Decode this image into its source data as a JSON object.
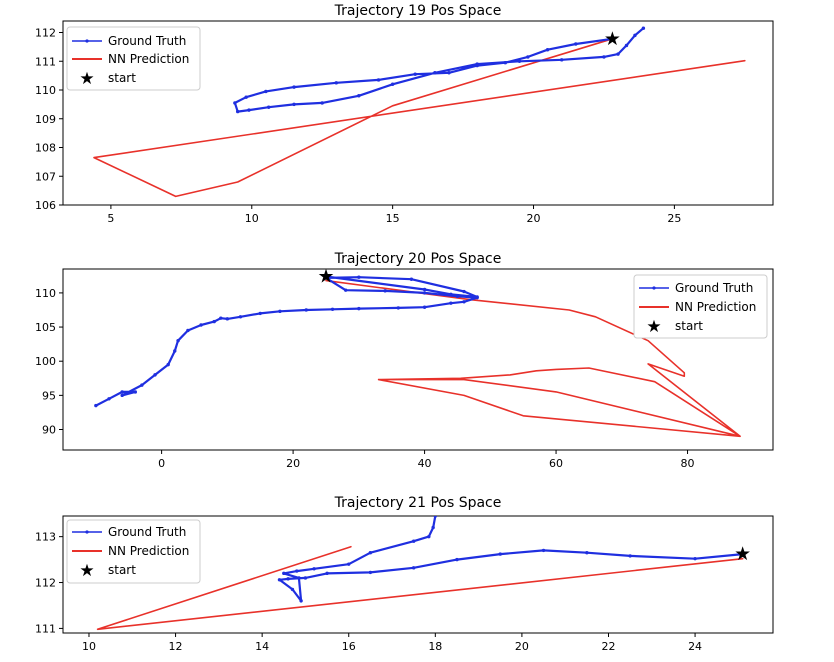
{
  "chart_data": [
    {
      "type": "line",
      "title": "Trajectory 19 Pos Space",
      "xlabel": "",
      "ylabel": "",
      "xlim": [
        3.3,
        28.5
      ],
      "ylim": [
        106,
        112.4
      ],
      "xticks": [
        5,
        10,
        15,
        20,
        25
      ],
      "yticks": [
        106,
        107,
        108,
        109,
        110,
        111,
        112
      ],
      "grid": false,
      "legend_position": "top-left",
      "legend": [
        "Ground Truth",
        "NN Prediction",
        "start"
      ],
      "series": [
        {
          "name": "Ground Truth",
          "color": "#1f2fe0",
          "marker": "dot",
          "x": [
            22.8,
            21.5,
            20.5,
            19.8,
            19.0,
            18.0,
            17.0,
            15.8,
            14.5,
            13.0,
            11.5,
            10.5,
            9.8,
            9.4,
            9.5,
            9.9,
            10.6,
            11.5,
            12.5,
            13.8,
            15.0,
            16.5,
            18.0,
            19.5,
            21.0,
            22.5,
            23.0,
            23.3,
            23.6,
            23.9
          ],
          "y": [
            111.78,
            111.6,
            111.4,
            111.15,
            110.95,
            110.85,
            110.6,
            110.55,
            110.35,
            110.25,
            110.1,
            109.95,
            109.75,
            109.55,
            109.25,
            109.3,
            109.4,
            109.5,
            109.55,
            109.8,
            110.2,
            110.6,
            110.9,
            111.0,
            111.05,
            111.15,
            111.25,
            111.55,
            111.9,
            112.15
          ]
        },
        {
          "name": "NN Prediction",
          "color": "#e8312a",
          "x": [
            27.5,
            4.4,
            7.3,
            9.5,
            15.0,
            22.8
          ],
          "y": [
            111.02,
            107.65,
            106.3,
            106.8,
            109.45,
            111.78
          ]
        },
        {
          "name": "start",
          "color": "#000000",
          "marker": "star",
          "x": [
            22.8
          ],
          "y": [
            111.78
          ]
        }
      ]
    },
    {
      "type": "line",
      "title": "Trajectory 20 Pos Space",
      "xlabel": "",
      "ylabel": "",
      "xlim": [
        -15,
        93
      ],
      "ylim": [
        87,
        113.5
      ],
      "xticks": [
        0,
        20,
        40,
        60,
        80
      ],
      "yticks": [
        90,
        95,
        100,
        105,
        110
      ],
      "grid": false,
      "legend_position": "top-right",
      "legend": [
        "Ground Truth",
        "NN Prediction",
        "start"
      ],
      "series": [
        {
          "name": "Ground Truth",
          "color": "#1f2fe0",
          "marker": "dot",
          "x": [
            -10,
            -8,
            -6,
            -4,
            -6,
            -3,
            -1,
            1,
            2,
            2.5,
            4,
            6,
            8,
            9,
            10,
            12,
            15,
            18,
            22,
            26,
            30,
            36,
            40,
            44,
            46,
            48,
            45,
            40,
            34,
            28,
            25,
            30,
            38,
            46,
            48,
            44,
            40,
            25
          ],
          "y": [
            93.5,
            94.5,
            95.5,
            95.5,
            95.0,
            96.5,
            98.0,
            99.5,
            101.5,
            103.0,
            104.5,
            105.3,
            105.8,
            106.3,
            106.2,
            106.5,
            107.0,
            107.3,
            107.5,
            107.6,
            107.7,
            107.8,
            107.9,
            108.5,
            108.7,
            109.3,
            109.5,
            110.0,
            110.3,
            110.4,
            112.2,
            112.3,
            112.0,
            110.2,
            109.4,
            109.8,
            110.5,
            112.4
          ]
        },
        {
          "name": "NN Prediction",
          "color": "#e8312a",
          "x": [
            25,
            47,
            62,
            66,
            74,
            79.5,
            79.5,
            74,
            88,
            60,
            46,
            33,
            45.5,
            53,
            57,
            60,
            65,
            75,
            88,
            55,
            46,
            33
          ],
          "y": [
            111.8,
            109.0,
            107.5,
            106.5,
            103.0,
            98.3,
            97.8,
            99.6,
            89.0,
            95.5,
            97.3,
            97.3,
            97.5,
            98.0,
            98.6,
            98.8,
            99.0,
            97.0,
            89.0,
            92.0,
            95.0,
            97.3
          ]
        },
        {
          "name": "start",
          "color": "#000000",
          "marker": "star",
          "x": [
            25
          ],
          "y": [
            112.4
          ]
        }
      ]
    },
    {
      "type": "line",
      "title": "Trajectory 21 Pos Space",
      "xlabel": "",
      "ylabel": "",
      "xlim": [
        9.4,
        25.8
      ],
      "ylim": [
        110.9,
        113.45
      ],
      "xticks": [
        10,
        12,
        14,
        16,
        18,
        20,
        22,
        24
      ],
      "yticks": [
        111,
        112,
        113
      ],
      "grid": false,
      "legend_position": "top-left",
      "legend": [
        "Ground Truth",
        "NN Prediction",
        "start"
      ],
      "series": [
        {
          "name": "Ground Truth",
          "color": "#1f2fe0",
          "marker": "dot",
          "x": [
            25.1,
            24.0,
            22.5,
            21.5,
            20.5,
            19.5,
            18.5,
            17.5,
            16.5,
            15.5,
            15.0,
            14.6,
            14.4,
            14.7,
            14.9,
            14.85,
            14.5,
            14.8,
            15.2,
            16.0,
            16.5,
            17.5,
            17.85,
            17.95,
            18.0
          ],
          "y": [
            112.62,
            112.52,
            112.58,
            112.65,
            112.7,
            112.62,
            112.5,
            112.32,
            112.22,
            112.2,
            112.1,
            112.08,
            112.06,
            111.85,
            111.6,
            112.1,
            112.2,
            112.25,
            112.3,
            112.4,
            112.65,
            112.9,
            113.0,
            113.2,
            113.45
          ]
        },
        {
          "name": "NN Prediction",
          "color": "#e8312a",
          "x": [
            16.05,
            10.2,
            25.1
          ],
          "y": [
            112.78,
            110.98,
            112.52
          ]
        },
        {
          "name": "start",
          "color": "#000000",
          "marker": "star",
          "x": [
            25.1
          ],
          "y": [
            112.62
          ]
        }
      ]
    }
  ]
}
